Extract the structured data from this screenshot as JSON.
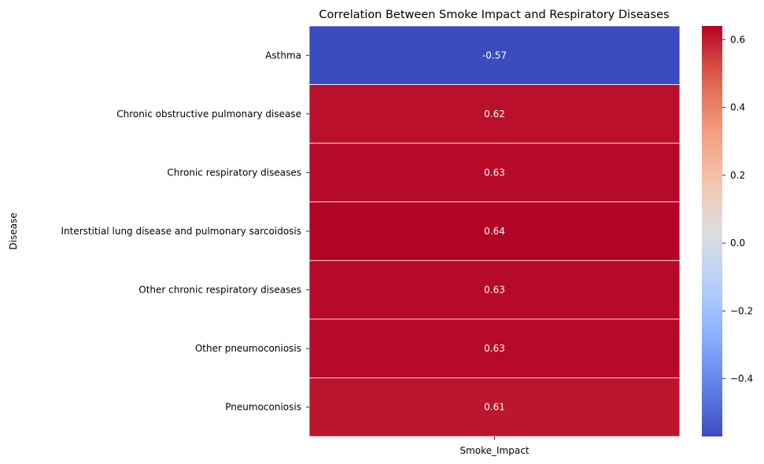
{
  "chart_data": {
    "type": "heatmap",
    "title": "Correlation Between Smoke Impact and Respiratory Diseases",
    "ylabel": "Disease",
    "xlabel": "",
    "columns": [
      "Smoke_Impact"
    ],
    "rows": [
      "Asthma",
      "Chronic obstructive pulmonary disease",
      "Chronic respiratory diseases",
      "Interstitial lung disease and pulmonary sarcoidosis",
      "Other chronic respiratory diseases",
      "Other pneumoconiosis",
      "Pneumoconiosis"
    ],
    "values": [
      -0.57,
      0.62,
      0.63,
      0.64,
      0.63,
      0.63,
      0.61
    ],
    "value_labels": [
      "-0.57",
      "0.62",
      "0.63",
      "0.64",
      "0.63",
      "0.63",
      "0.61"
    ],
    "colormap": "coolwarm",
    "vmin": -0.57,
    "vmax": 0.64,
    "colorbar_ticks": [
      -0.4,
      -0.2,
      0.0,
      0.2,
      0.4,
      0.6
    ],
    "colorbar_tick_labels": [
      "−0.4",
      "−0.2",
      "0.0",
      "0.2",
      "0.4",
      "0.6"
    ]
  }
}
